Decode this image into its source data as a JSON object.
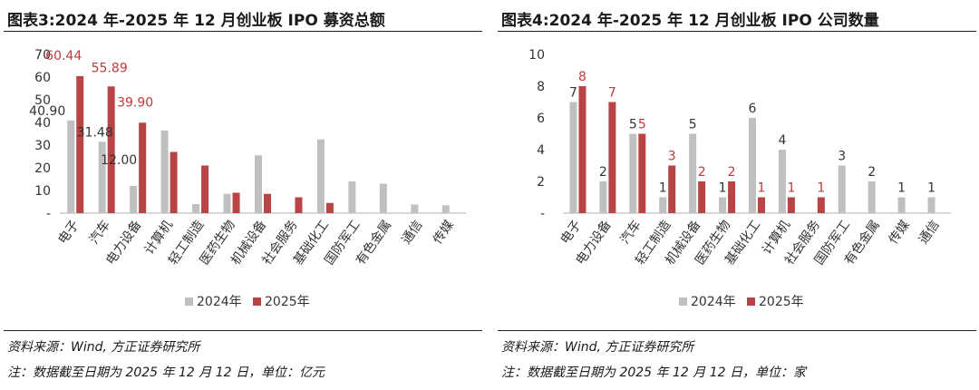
{
  "charts": [
    {
      "title": "图表3:2024 年-2025 年 12 月创业板 IPO 募资总额",
      "source": "资料来源：Wind, 方正证券研究所",
      "note": "注：数据截至日期为 2025 年 12 月 12 日，单位：亿元",
      "chart_data": {
        "type": "bar",
        "title": "图表3:2024 年-2025 年 12 月创业板 IPO 募资总额",
        "categories": [
          "电子",
          "汽车",
          "电力设备",
          "计算机",
          "轻工制造",
          "医药生物",
          "机械设备",
          "社会服务",
          "基础化工",
          "国防军工",
          "有色金属",
          "通信",
          "传媒"
        ],
        "series": [
          {
            "name": "2024年",
            "values": [
              40.9,
              31.48,
              12.0,
              36.5,
              4.0,
              8.5,
              25.5,
              0,
              32.5,
              14.0,
              13.0,
              3.8,
              3.5
            ]
          },
          {
            "name": "2025年",
            "values": [
              60.44,
              55.89,
              39.9,
              27.0,
              21.0,
              9.0,
              8.5,
              7.0,
              4.5,
              0,
              0,
              0,
              0
            ]
          }
        ],
        "annotations": [
          {
            "series": 0,
            "index": 0,
            "text": "40.90"
          },
          {
            "series": 0,
            "index": 1,
            "text": "31.48"
          },
          {
            "series": 0,
            "index": 2,
            "text": "12.00"
          },
          {
            "series": 1,
            "index": 0,
            "text": "60.44"
          },
          {
            "series": 1,
            "index": 1,
            "text": "55.89"
          },
          {
            "series": 1,
            "index": 2,
            "text": "39.90"
          }
        ],
        "yticks": [
          "-",
          "10",
          "20",
          "30",
          "40",
          "50",
          "60",
          "70"
        ],
        "ylim": [
          0,
          70
        ],
        "xlabel": "",
        "ylabel": "",
        "legend": [
          "2024年",
          "2025年"
        ],
        "legend_position": "bottom"
      }
    },
    {
      "title": "图表4:2024 年-2025 年 12 月创业板 IPO 公司数量",
      "source": "资料来源：Wind, 方正证券研究所",
      "note": "注：数据截至日期为 2025 年 12 月 12 日，单位：家",
      "chart_data": {
        "type": "bar",
        "title": "图表4:2024 年-2025 年 12 月创业板 IPO 公司数量",
        "categories": [
          "电子",
          "电力设备",
          "汽车",
          "轻工制造",
          "机械设备",
          "医药生物",
          "基础化工",
          "计算机",
          "社会服务",
          "国防军工",
          "有色金属",
          "传媒",
          "通信"
        ],
        "series": [
          {
            "name": "2024年",
            "values": [
              7,
              2,
              5,
              1,
              5,
              1,
              6,
              4,
              0,
              3,
              2,
              1,
              1
            ]
          },
          {
            "name": "2025年",
            "values": [
              8,
              7,
              5,
              3,
              2,
              2,
              1,
              1,
              1,
              0,
              0,
              0,
              0
            ]
          }
        ],
        "annotations": [
          {
            "series": 0,
            "index": 0,
            "text": "7"
          },
          {
            "series": 0,
            "index": 1,
            "text": "2"
          },
          {
            "series": 0,
            "index": 2,
            "text": "5"
          },
          {
            "series": 0,
            "index": 3,
            "text": "1"
          },
          {
            "series": 0,
            "index": 4,
            "text": "5"
          },
          {
            "series": 0,
            "index": 5,
            "text": "1"
          },
          {
            "series": 0,
            "index": 6,
            "text": "6"
          },
          {
            "series": 0,
            "index": 7,
            "text": "4"
          },
          {
            "series": 0,
            "index": 9,
            "text": "3"
          },
          {
            "series": 0,
            "index": 10,
            "text": "2"
          },
          {
            "series": 0,
            "index": 11,
            "text": "1"
          },
          {
            "series": 0,
            "index": 12,
            "text": "1"
          },
          {
            "series": 1,
            "index": 0,
            "text": "8"
          },
          {
            "series": 1,
            "index": 1,
            "text": "7"
          },
          {
            "series": 1,
            "index": 2,
            "text": "5"
          },
          {
            "series": 1,
            "index": 3,
            "text": "3"
          },
          {
            "series": 1,
            "index": 4,
            "text": "2"
          },
          {
            "series": 1,
            "index": 5,
            "text": "2"
          },
          {
            "series": 1,
            "index": 6,
            "text": "1"
          },
          {
            "series": 1,
            "index": 7,
            "text": "1"
          },
          {
            "series": 1,
            "index": 8,
            "text": "1"
          }
        ],
        "yticks": [
          "-",
          "2",
          "4",
          "6",
          "8",
          "10"
        ],
        "ylim": [
          0,
          10
        ],
        "xlabel": "",
        "ylabel": "",
        "legend": [
          "2024年",
          "2025年"
        ],
        "legend_position": "bottom"
      }
    }
  ],
  "colors": {
    "series2024": "#c0c0c0",
    "series2025": "#b84445",
    "label2025": "#c0393b",
    "label2024": "#333333",
    "axis": "#b0b0b0",
    "text": "#333333"
  }
}
